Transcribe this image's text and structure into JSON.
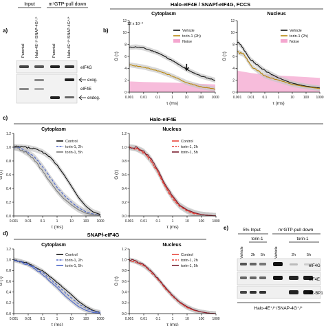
{
  "panels": {
    "a": {
      "letter": "a)",
      "header_input": "Input",
      "header_pulldown": "m⁷GTP-pull down",
      "lanes": [
        "Parental",
        "Halo-4E⁺/⁺/SNAP-4G⁺/⁺",
        "Parental",
        "Halo-4E⁺/⁺/SNAP-4G⁺/⁺"
      ],
      "blot_labels": [
        "eIF4G",
        "exog.",
        "eIF4E",
        "endog."
      ]
    },
    "b": {
      "letter": "b)",
      "title": "Halo-eIF4E / SNAPf-eIF4G, FCCS",
      "sub_left": "Cytoplasm",
      "sub_right": "Nucleus",
      "exponent": "12 x 10⁻³",
      "ylabel": "G (τ)",
      "xlabel": "τ (ms)",
      "legend": [
        "Vehicle",
        "torin-1 (2h)",
        "Noise"
      ]
    },
    "c": {
      "letter": "c)",
      "title": "Halo-eIF4E",
      "sub_left": "Cytoplasm",
      "sub_right": "Nucleus",
      "ylabel_left": "G (τ)",
      "ylabel_right": "G (τ)",
      "xlabel": "τ (ms)",
      "legend": [
        "Control",
        "torin-1, 2h",
        "torin-1, 5h"
      ]
    },
    "d": {
      "letter": "d)",
      "title": "SNAPf-eIF4G",
      "sub_left": "Cytoplasm",
      "sub_right": "Nucleus",
      "ylabel_left": "G (τ)",
      "ylabel_right": "G (τ)",
      "xlabel": "τ (ms)",
      "legend": [
        "Control",
        "torin-1, 2h",
        "torin-1, 5h"
      ]
    },
    "e": {
      "letter": "e)",
      "header_input": "5% Input",
      "header_pulldown": "m⁷GTP-pull down",
      "torin": "torin-1",
      "lanes": [
        "Vehicle",
        "2h",
        "5h",
        "Vehicle",
        "2h",
        "5h"
      ],
      "blot_labels": [
        "eIF4G",
        "eIF4E",
        "4E-BP1"
      ],
      "footer": "Halo-4E⁺/⁺/SNAP-4G⁺/⁺"
    }
  },
  "axes": {
    "x_ticks": [
      "0.001",
      "0.01",
      "0.1",
      "1",
      "10",
      "100",
      "1000"
    ],
    "b_y_ticks": [
      "0",
      "2",
      "4",
      "6",
      "8",
      "10",
      "12"
    ],
    "cd_y_ticks": [
      "0.0",
      "0.2",
      "0.4",
      "0.6",
      "0.8",
      "1.0",
      "1.2"
    ],
    "cd_y_ticks_right": [
      "0.0",
      "0.2",
      "0.4",
      "0.6",
      "0.8",
      "1.0",
      "1.2"
    ]
  },
  "colors": {
    "black": "#111111",
    "torin_b": "#b8860b",
    "noise": "#f4a6cf",
    "blue": "#4a64c8",
    "gray": "#7a7a7a",
    "red": "#e8443a",
    "dark_red": "#7a2030",
    "band": "#c8c8c8"
  },
  "chart_data": [
    {
      "type": "line",
      "panel": "b",
      "title": "Cytoplasm",
      "xscale": "log",
      "xlim": [
        0.001,
        1000
      ],
      "ylim": [
        0,
        12
      ],
      "yunit": "x 10⁻³",
      "xlabel": "τ (ms)",
      "ylabel": "G (τ)",
      "series": [
        {
          "name": "Vehicle",
          "x": [
            0.001,
            0.003,
            0.01,
            0.1,
            1,
            10,
            100,
            1000
          ],
          "y": [
            7.5,
            7.6,
            7.4,
            6.6,
            5.3,
            3.8,
            2.7,
            2.0
          ]
        },
        {
          "name": "torin-1 (2h)",
          "x": [
            0.001,
            0.003,
            0.01,
            0.1,
            1,
            10,
            100,
            1000
          ],
          "y": [
            4.6,
            4.4,
            4.2,
            3.6,
            2.7,
            1.6,
            0.9,
            0.5
          ]
        }
      ],
      "noise_band": [
        [
          0.001,
          1.8
        ],
        [
          0.01,
          1.7
        ],
        [
          1,
          1.6
        ],
        [
          1000,
          1.3
        ]
      ]
    },
    {
      "type": "line",
      "panel": "b",
      "title": "Nucleus",
      "xscale": "log",
      "xlim": [
        0.001,
        1000
      ],
      "ylim": [
        0,
        12
      ],
      "yunit": "x 10⁻³",
      "xlabel": "τ (ms)",
      "ylabel": "G (τ)",
      "series": [
        {
          "name": "Vehicle",
          "x": [
            0.001,
            0.003,
            0.01,
            0.1,
            1,
            10,
            100,
            1000
          ],
          "y": [
            8.5,
            7.2,
            5.4,
            3.6,
            2.4,
            1.5,
            1.0,
            0.7
          ]
        },
        {
          "name": "torin-1 (2h)",
          "x": [
            0.001,
            0.003,
            0.01,
            0.1,
            1,
            10,
            100,
            1000
          ],
          "y": [
            6.8,
            6.3,
            4.4,
            2.7,
            2.0,
            1.3,
            0.9,
            0.6
          ]
        }
      ],
      "noise_band": [
        [
          0.001,
          3.6
        ],
        [
          0.01,
          3.2
        ],
        [
          1,
          2.8
        ],
        [
          1000,
          2.4
        ]
      ]
    },
    {
      "type": "line",
      "panel": "c",
      "title": "Cytoplasm",
      "xscale": "log",
      "xlim": [
        0.001,
        1000
      ],
      "ylim": [
        0,
        1.2
      ],
      "xlabel": "τ (ms)",
      "ylabel": "G (τ)",
      "series": [
        {
          "name": "Control",
          "x": [
            0.001,
            0.003,
            0.01,
            0.03,
            0.1,
            0.3,
            1,
            3,
            10,
            30,
            100,
            300,
            1000
          ],
          "y": [
            1.0,
            1.0,
            0.99,
            0.97,
            0.93,
            0.86,
            0.74,
            0.6,
            0.43,
            0.27,
            0.14,
            0.06,
            0.02
          ]
        },
        {
          "name": "torin-1, 2h",
          "x": [
            0.001,
            0.003,
            0.01,
            0.03,
            0.1,
            0.3,
            1,
            3,
            10,
            30,
            100,
            300,
            1000
          ],
          "y": [
            1.0,
            0.98,
            0.93,
            0.85,
            0.72,
            0.57,
            0.42,
            0.3,
            0.2,
            0.12,
            0.06,
            0.03,
            0.01
          ]
        },
        {
          "name": "torin-1, 5h",
          "x": [
            0.001,
            0.003,
            0.01,
            0.03,
            0.1,
            0.3,
            1,
            3,
            10,
            30,
            100,
            300,
            1000
          ],
          "y": [
            1.0,
            0.97,
            0.9,
            0.8,
            0.65,
            0.5,
            0.36,
            0.25,
            0.16,
            0.09,
            0.04,
            0.02,
            0.01
          ]
        }
      ]
    },
    {
      "type": "line",
      "panel": "c",
      "title": "Nucleus",
      "xscale": "log",
      "xlim": [
        0.001,
        1000
      ],
      "ylim": [
        0,
        1.2
      ],
      "xlabel": "τ (ms)",
      "ylabel": "G (τ)",
      "series": [
        {
          "name": "Control",
          "x": [
            0.001,
            0.003,
            0.01,
            0.03,
            0.1,
            0.3,
            1,
            3,
            10,
            30,
            100,
            300,
            1000
          ],
          "y": [
            1.0,
            0.98,
            0.93,
            0.82,
            0.64,
            0.44,
            0.27,
            0.15,
            0.08,
            0.04,
            0.02,
            0.01,
            0.0
          ]
        },
        {
          "name": "torin-1, 2h",
          "x": [
            0.001,
            0.003,
            0.01,
            0.03,
            0.1,
            0.3,
            1,
            3,
            10,
            30,
            100,
            300,
            1000
          ],
          "y": [
            1.0,
            0.98,
            0.92,
            0.8,
            0.62,
            0.42,
            0.25,
            0.14,
            0.07,
            0.03,
            0.02,
            0.01,
            0.0
          ]
        },
        {
          "name": "torin-1, 5h",
          "x": [
            0.001,
            0.003,
            0.01,
            0.03,
            0.1,
            0.3,
            1,
            3,
            10,
            30,
            100,
            300,
            1000
          ],
          "y": [
            1.0,
            0.99,
            0.94,
            0.84,
            0.66,
            0.46,
            0.29,
            0.16,
            0.09,
            0.05,
            0.02,
            0.01,
            0.0
          ]
        }
      ]
    },
    {
      "type": "line",
      "panel": "d",
      "title": "Cytoplasm",
      "xscale": "log",
      "xlim": [
        0.001,
        1000
      ],
      "ylim": [
        0,
        1.2
      ],
      "xlabel": "τ (ms)",
      "ylabel": "G (τ)",
      "series": [
        {
          "name": "Control",
          "x": [
            0.001,
            0.003,
            0.01,
            0.03,
            0.1,
            0.3,
            1,
            3,
            10,
            30,
            100,
            300,
            1000
          ],
          "y": [
            1.0,
            0.97,
            0.93,
            0.87,
            0.79,
            0.69,
            0.58,
            0.47,
            0.35,
            0.23,
            0.13,
            0.06,
            0.02
          ]
        },
        {
          "name": "torin-1, 2h",
          "x": [
            0.001,
            0.003,
            0.01,
            0.03,
            0.1,
            0.3,
            1,
            3,
            10,
            30,
            100,
            300,
            1000
          ],
          "y": [
            1.0,
            0.97,
            0.92,
            0.85,
            0.76,
            0.65,
            0.53,
            0.41,
            0.29,
            0.18,
            0.1,
            0.05,
            0.02
          ]
        },
        {
          "name": "torin-1, 5h",
          "x": [
            0.001,
            0.003,
            0.01,
            0.03,
            0.1,
            0.3,
            1,
            3,
            10,
            30,
            100,
            300,
            1000
          ],
          "y": [
            1.0,
            0.96,
            0.91,
            0.83,
            0.73,
            0.61,
            0.48,
            0.35,
            0.23,
            0.13,
            0.06,
            0.02,
            0.01
          ]
        }
      ]
    },
    {
      "type": "line",
      "panel": "d",
      "title": "Nucleus",
      "xscale": "log",
      "xlim": [
        0.001,
        1000
      ],
      "ylim": [
        0,
        1.2
      ],
      "xlabel": "τ (ms)",
      "ylabel": "G (τ)",
      "series": [
        {
          "name": "Control",
          "x": [
            0.001,
            0.003,
            0.01,
            0.03,
            0.1,
            0.3,
            1,
            3,
            10,
            30,
            100,
            300,
            1000
          ],
          "y": [
            1.0,
            0.97,
            0.9,
            0.79,
            0.64,
            0.48,
            0.33,
            0.21,
            0.12,
            0.06,
            0.03,
            0.01,
            0.0
          ]
        },
        {
          "name": "torin-1, 2h",
          "x": [
            0.001,
            0.003,
            0.01,
            0.03,
            0.1,
            0.3,
            1,
            3,
            10,
            30,
            100,
            300,
            1000
          ],
          "y": [
            1.0,
            0.96,
            0.89,
            0.78,
            0.63,
            0.47,
            0.32,
            0.2,
            0.11,
            0.06,
            0.03,
            0.01,
            0.0
          ]
        },
        {
          "name": "torin-1, 5h",
          "x": [
            0.001,
            0.003,
            0.01,
            0.03,
            0.1,
            0.3,
            1,
            3,
            10,
            30,
            100,
            300,
            1000
          ],
          "y": [
            1.0,
            0.97,
            0.9,
            0.8,
            0.65,
            0.49,
            0.34,
            0.22,
            0.13,
            0.07,
            0.03,
            0.01,
            0.0
          ]
        }
      ]
    }
  ]
}
